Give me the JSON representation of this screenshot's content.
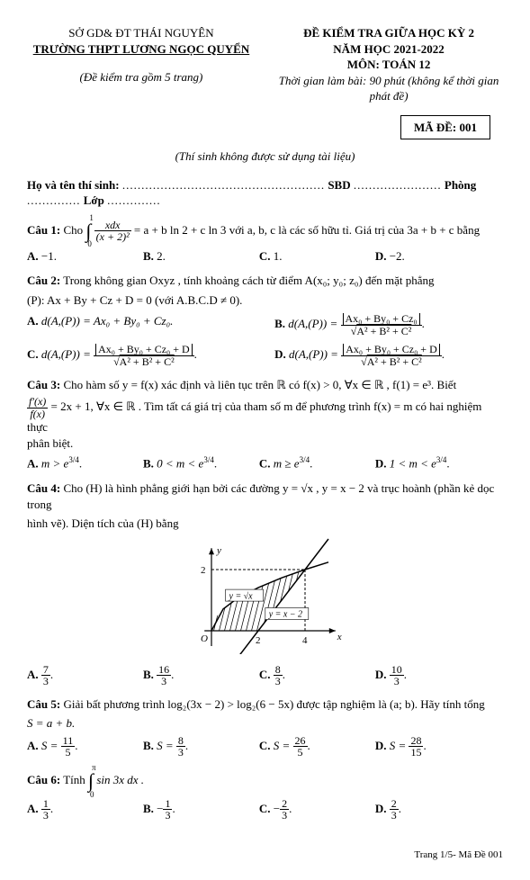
{
  "header": {
    "dept": "SỞ GD& ĐT THÁI NGUYÊN",
    "school": "TRƯỜNG THPT LƯƠNG NGỌC QUYỂN",
    "note": "(Đề kiểm tra gồm 5 trang)",
    "title1": "ĐỀ KIỂM TRA GIỮA HỌC KỲ 2",
    "title2": "NĂM HỌC 2021-2022",
    "title3": "MÔN: TOÁN 12",
    "title4": "Thời gian làm bài: 90 phút (không kể thời gian phát đề)",
    "made": "MÃ ĐỀ: 001",
    "instr": "(Thí sinh không được sử dụng tài liệu)",
    "nameline_a": "Họ và tên thí sinh:",
    "nameline_b": "SBD",
    "nameline_c": "Phòng",
    "nameline_d": "Lớp"
  },
  "q1": {
    "label": "Câu 1:",
    "pre": "Cho",
    "int_upper": "1",
    "int_lower": "0",
    "int_num": "xdx",
    "int_den": "(x + 2)²",
    "eq": "= a + b ln 2 + c ln 3",
    "mid": "với a, b, c là các số hữu tỉ. Giá trị của 3a + b + c bằng",
    "A": "−1.",
    "B": "2.",
    "C": "1.",
    "D": "−2."
  },
  "q2": {
    "label": "Câu 2:",
    "stem1": "Trong không gian Oxyz , tính khoảng cách từ điểm A(x₀; y₀; z₀) đến mặt phẳng",
    "stem2": "(P): Ax + By + Cz + D = 0 (với A.B.C.D ≠ 0).",
    "A_lhs": "d(A,(P)) = Ax₀ + By₀ + Cz₀.",
    "B_lhs": "d(A,(P)) =",
    "B_num": "Ax₀ + By₀ + Cz₀",
    "B_den": "A² + B² + C²",
    "C_lhs": "d(A,(P)) =",
    "C_num": "Ax₀ + By₀ + Cz₀ + D",
    "C_den": "A² + B² + C²",
    "D_lhs": "d(A,(P)) =",
    "D_num": "Ax₀ + By₀ + Cz₀ + D",
    "D_den": "A² + B² + C²"
  },
  "q3": {
    "label": "Câu 3:",
    "stem1": "Cho hàm số y = f(x) xác định và liên tục trên ℝ có f(x) > 0, ∀x ∈ ℝ , f(1) = e³. Biết",
    "frac_num": "f′(x)",
    "frac_den": "f(x)",
    "stem2": "= 2x + 1, ∀x ∈ ℝ . Tìm tất cá giá trị của tham số m để phương trình f(x) = m có hai nghiệm thực",
    "stem3": "phân biệt.",
    "A": "m > e",
    "A_exp": "3/4",
    "B": "0 < m < e",
    "B_exp": "3/4",
    "C": "m ≥ e",
    "C_exp": "3/4",
    "D": "1 < m < e",
    "D_exp": "3/4"
  },
  "q4": {
    "label": "Câu 4:",
    "stem1": "Cho (H) là hình phẳng giới hạn bởi các đường y = √x , y = x − 2 và trục hoành (phần kẻ dọc trong",
    "stem2": "hình vẽ). Diện tích của (H) bằng",
    "chart": {
      "type": "region-plot",
      "width": 180,
      "height": 130,
      "bg": "#ffffff",
      "axis_color": "#000000",
      "axis_width": 1.2,
      "x_ticks": [
        "O",
        "2",
        "4"
      ],
      "y_ticks": [
        "2"
      ],
      "curves": [
        {
          "label": "y = √x",
          "color": "#000000",
          "width": 1.5,
          "pts": [
            [
              0,
              0
            ],
            [
              0.5,
              0.71
            ],
            [
              1,
              1
            ],
            [
              2,
              1.41
            ],
            [
              3,
              1.73
            ],
            [
              4,
              2
            ],
            [
              5,
              2.24
            ]
          ]
        },
        {
          "label": "y = x − 2",
          "color": "#000000",
          "width": 1.5,
          "pts": [
            [
              1,
              -1
            ],
            [
              2,
              0
            ],
            [
              4,
              2
            ],
            [
              5,
              3
            ]
          ]
        }
      ],
      "hatching": {
        "from_x": 0,
        "to_x": 4,
        "spacing": 6,
        "angle": -75,
        "color": "#000000"
      },
      "dashed": [
        {
          "from": [
            4,
            0
          ],
          "to": [
            4,
            2
          ]
        },
        {
          "from": [
            0,
            2
          ],
          "to": [
            4,
            2
          ]
        }
      ],
      "label_box_bg": "#ffffff",
      "axis_labels": {
        "x": "x",
        "y": "y"
      }
    },
    "A_num": "7",
    "A_den": "3",
    "B_num": "16",
    "B_den": "3",
    "C_num": "8",
    "C_den": "3",
    "D_num": "10",
    "D_den": "3"
  },
  "q5": {
    "label": "Câu 5:",
    "stem1": "Giải bất phương trình log₂(3x − 2) > log₂(6 − 5x) được tập nghiệm là (a; b). Hãy tính tổng",
    "stem2": "S = a + b.",
    "A_pre": "S =",
    "A_num": "11",
    "A_den": "5",
    "B_pre": "S =",
    "B_num": "8",
    "B_den": "3",
    "C_pre": "S =",
    "C_num": "26",
    "C_den": "5",
    "D_pre": "S =",
    "D_num": "28",
    "D_den": "15"
  },
  "q6": {
    "label": "Câu 6:",
    "pre": "Tính",
    "int_upper": "π",
    "int_lower": "0",
    "int_body": "sin 3x dx .",
    "A_num": "1",
    "A_den": "3",
    "B_pre": "−",
    "B_num": "1",
    "B_den": "3",
    "C_pre": "−",
    "C_num": "2",
    "C_den": "3",
    "D_num": "2",
    "D_den": "3"
  },
  "footer": "Trang 1/5- Mã Đề 001"
}
